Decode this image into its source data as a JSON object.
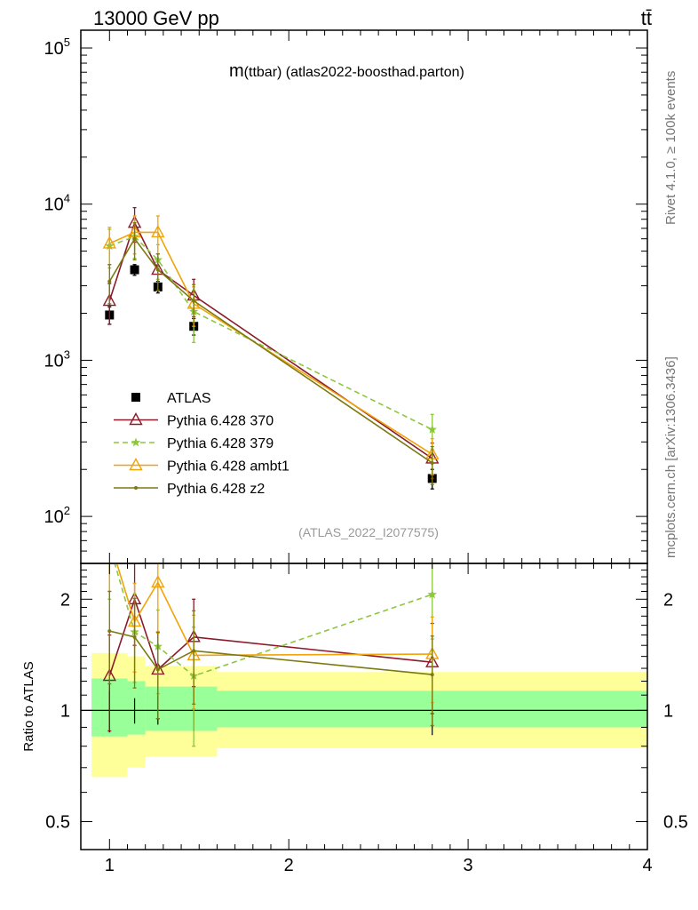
{
  "header": {
    "left": "13000 GeV pp",
    "right": "tt̄"
  },
  "side_labels": {
    "rivet": "Rivet 4.1.0, ≥ 100k events",
    "mcplots": "mcplots.cern.ch [arXiv:1306.3436]"
  },
  "colors": {
    "atlas": "#000000",
    "p370": "#8b1a2a",
    "p379": "#8dc63f",
    "ambt1": "#f0a30a",
    "z2": "#7a7a10",
    "band_inner": "#99ff99",
    "band_outer": "#ffff99"
  },
  "chart_data": [
    {
      "type": "line",
      "title": "m(ttbar) (atlas2022-boosthad.parton)",
      "title_parts": {
        "main": "m",
        "rest": "(ttbar) (atlas2022-boosthad.parton)"
      },
      "watermark": "(ATLAS_2022_I2077575)",
      "yscale": "log",
      "ylim": [
        50,
        130000
      ],
      "xlim": [
        0.84,
        4.0
      ],
      "y_ticks": [
        {
          "value": 100,
          "base": "10",
          "exp": "2"
        },
        {
          "value": 1000,
          "base": "10",
          "exp": "3"
        },
        {
          "value": 10000,
          "base": "10",
          "exp": "4"
        },
        {
          "value": 100000,
          "base": "10",
          "exp": "5"
        }
      ],
      "legend_position": "bottom-left",
      "series": [
        {
          "name": "ATLAS",
          "marker": "square",
          "x": [
            1.0,
            1.14,
            1.27,
            1.47,
            2.8
          ],
          "y": [
            1950,
            3800,
            2950,
            1650,
            175
          ],
          "err": [
            250,
            300,
            250,
            200,
            25
          ]
        },
        {
          "name": "Pythia 6.428 370",
          "marker": "triangle",
          "dash": false,
          "x": [
            1.0,
            1.14,
            1.27,
            1.47,
            2.8
          ],
          "y": [
            2400,
            7600,
            3800,
            2600,
            235
          ],
          "err": [
            700,
            1900,
            1000,
            700,
            60
          ]
        },
        {
          "name": "Pythia 6.428 379",
          "marker": "star",
          "dash": true,
          "x": [
            1.0,
            1.14,
            1.27,
            1.47,
            2.8
          ],
          "y": [
            5400,
            6200,
            4400,
            2050,
            360
          ],
          "err": [
            1500,
            1700,
            1100,
            750,
            90
          ]
        },
        {
          "name": "Pythia 6.428 ambt1",
          "marker": "triangle",
          "dash": false,
          "x": [
            1.0,
            1.14,
            1.27,
            1.47,
            2.8
          ],
          "y": [
            5600,
            6600,
            6600,
            2300,
            250
          ],
          "err": [
            1500,
            1800,
            1800,
            650,
            65
          ]
        },
        {
          "name": "Pythia 6.428 z2",
          "marker": "dot",
          "dash": false,
          "x": [
            1.0,
            1.14,
            1.27,
            1.47,
            2.8
          ],
          "y": [
            3200,
            6000,
            3800,
            2400,
            220
          ],
          "err": [
            900,
            1600,
            1000,
            650,
            60
          ]
        }
      ]
    },
    {
      "type": "line",
      "ylabel": "Ratio to ATLAS",
      "yscale": "log",
      "ylim": [
        0.42,
        2.5
      ],
      "xlim": [
        0.84,
        4.0
      ],
      "y_ticks": [
        0.5,
        1,
        2
      ],
      "x_ticks": [
        1,
        2,
        3,
        4
      ],
      "reference": 1,
      "bands": {
        "edges": [
          0.9,
          1.1,
          1.2,
          1.6,
          4.0
        ],
        "inner": [
          [
            0.85,
            1.22
          ],
          [
            0.86,
            1.2
          ],
          [
            0.88,
            1.16
          ],
          [
            0.9,
            1.13
          ]
        ],
        "outer": [
          [
            0.66,
            1.43
          ],
          [
            0.7,
            1.4
          ],
          [
            0.75,
            1.32
          ],
          [
            0.79,
            1.27
          ]
        ]
      },
      "series": [
        {
          "name": "Pythia 6.428 370",
          "x": [
            1.0,
            1.14,
            1.27,
            1.47,
            2.8
          ],
          "y": [
            1.24,
            2.0,
            1.29,
            1.58,
            1.35
          ],
          "err": [
            0.36,
            0.5,
            0.34,
            0.42,
            0.37
          ]
        },
        {
          "name": "Pythia 6.428 379",
          "x": [
            1.0,
            1.14,
            1.27,
            1.47,
            2.8
          ],
          "y": [
            2.8,
            1.63,
            1.49,
            1.24,
            2.06
          ],
          "err": [
            0.8,
            0.44,
            0.38,
            0.44,
            0.5
          ]
        },
        {
          "name": "Pythia 6.428 ambt1",
          "x": [
            1.0,
            1.14,
            1.27,
            1.47,
            2.8
          ],
          "y": [
            2.9,
            1.74,
            2.22,
            1.41,
            1.42
          ],
          "err": [
            0.8,
            0.47,
            0.6,
            0.4,
            0.37
          ]
        },
        {
          "name": "Pythia 6.428 z2",
          "x": [
            1.0,
            1.14,
            1.27,
            1.47,
            2.8
          ],
          "y": [
            1.64,
            1.58,
            1.29,
            1.45,
            1.25
          ],
          "err": [
            0.46,
            0.43,
            0.34,
            0.41,
            0.34
          ]
        }
      ]
    }
  ]
}
